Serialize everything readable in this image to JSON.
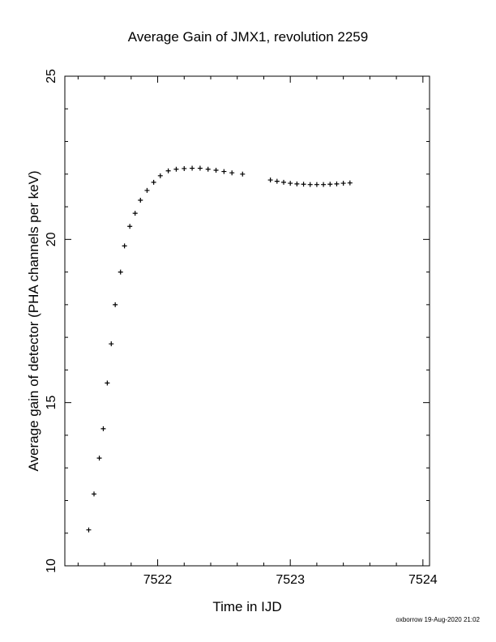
{
  "chart_data": {
    "type": "scatter",
    "title": "Average Gain of JMX1, revolution 2259",
    "xlabel": "Time in IJD",
    "ylabel": "Average gain of detector (PHA channels per keV)",
    "xlim": [
      7521.3,
      7524.05
    ],
    "ylim": [
      10,
      25
    ],
    "xticks": [
      7522,
      7523,
      7524
    ],
    "yticks": [
      10,
      15,
      20,
      25
    ],
    "marker": "plus",
    "grid": false,
    "segments": [
      {
        "x": [
          7521.48,
          7521.52,
          7521.56,
          7521.59,
          7521.62,
          7521.65,
          7521.68,
          7521.72,
          7521.75,
          7521.79,
          7521.83,
          7521.87,
          7521.92,
          7521.97,
          7522.02,
          7522.08,
          7522.14,
          7522.2,
          7522.26,
          7522.32,
          7522.38,
          7522.44,
          7522.5,
          7522.56,
          7522.64
        ],
        "y": [
          11.1,
          12.2,
          13.3,
          14.2,
          15.6,
          16.8,
          18.0,
          19.0,
          19.8,
          20.4,
          20.8,
          21.2,
          21.5,
          21.75,
          21.95,
          22.1,
          22.15,
          22.17,
          22.18,
          22.18,
          22.15,
          22.12,
          22.08,
          22.04,
          22.0
        ]
      },
      {
        "x": [
          7522.85,
          7522.9,
          7522.95,
          7523.0,
          7523.05,
          7523.1,
          7523.15,
          7523.2,
          7523.25,
          7523.3,
          7523.35,
          7523.4,
          7523.45
        ],
        "y": [
          21.82,
          21.78,
          21.75,
          21.72,
          21.7,
          21.69,
          21.68,
          21.68,
          21.68,
          21.69,
          21.7,
          21.72,
          21.73
        ]
      }
    ]
  },
  "footer": "oxborrow 19-Aug-2020 21:02"
}
